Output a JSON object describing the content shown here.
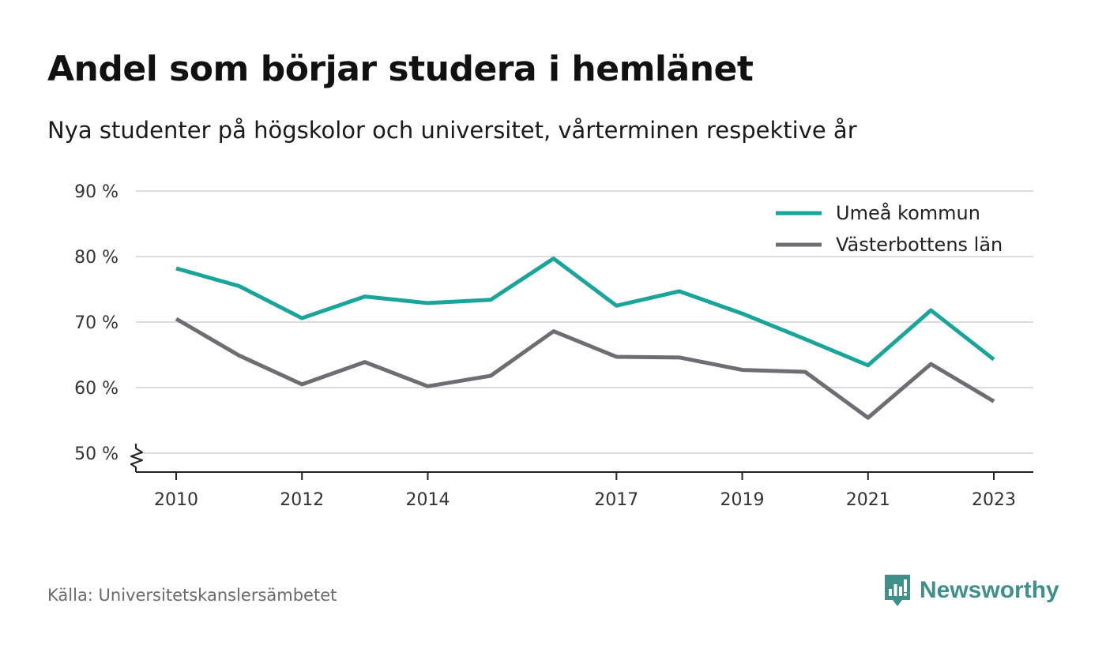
{
  "chart_data": {
    "type": "line",
    "title": "Andel som börjar studera i hemlänet",
    "subtitle": "Nya studenter på högskolor och universitet, vårterminen respektive år",
    "x": [
      2010,
      2011,
      2012,
      2013,
      2014,
      2015,
      2016,
      2017,
      2018,
      2019,
      2020,
      2021,
      2022,
      2023
    ],
    "x_tick_labels": [
      "2010",
      "2012",
      "2014",
      "2017",
      "2019",
      "2021",
      "2023"
    ],
    "y_tick_labels": [
      "50 %",
      "60 %",
      "70 %",
      "80 %",
      "90 %"
    ],
    "y_ticks": [
      50,
      60,
      70,
      80,
      90
    ],
    "ylim": [
      47,
      90
    ],
    "y_axis_break": true,
    "grid": true,
    "legend_position": "top-right",
    "series": [
      {
        "name": "Umeå kommun",
        "color": "#1aa59b",
        "values": [
          78.2,
          75.5,
          70.6,
          73.9,
          72.9,
          73.4,
          79.7,
          72.5,
          74.7,
          71.3,
          67.4,
          63.4,
          71.8,
          64.3
        ]
      },
      {
        "name": "Västerbottens län",
        "color": "#6e6d74",
        "values": [
          70.5,
          64.9,
          60.5,
          63.9,
          60.2,
          61.8,
          68.6,
          64.7,
          64.6,
          62.7,
          62.4,
          55.4,
          63.6,
          57.9
        ]
      }
    ]
  },
  "footer": {
    "source": "Källa: Universitetskanslersämbetet",
    "brand": "Newsworthy"
  },
  "colors": {
    "brand": "#3f8f8a",
    "grid": "#dcdcdc",
    "axis": "#222222"
  }
}
